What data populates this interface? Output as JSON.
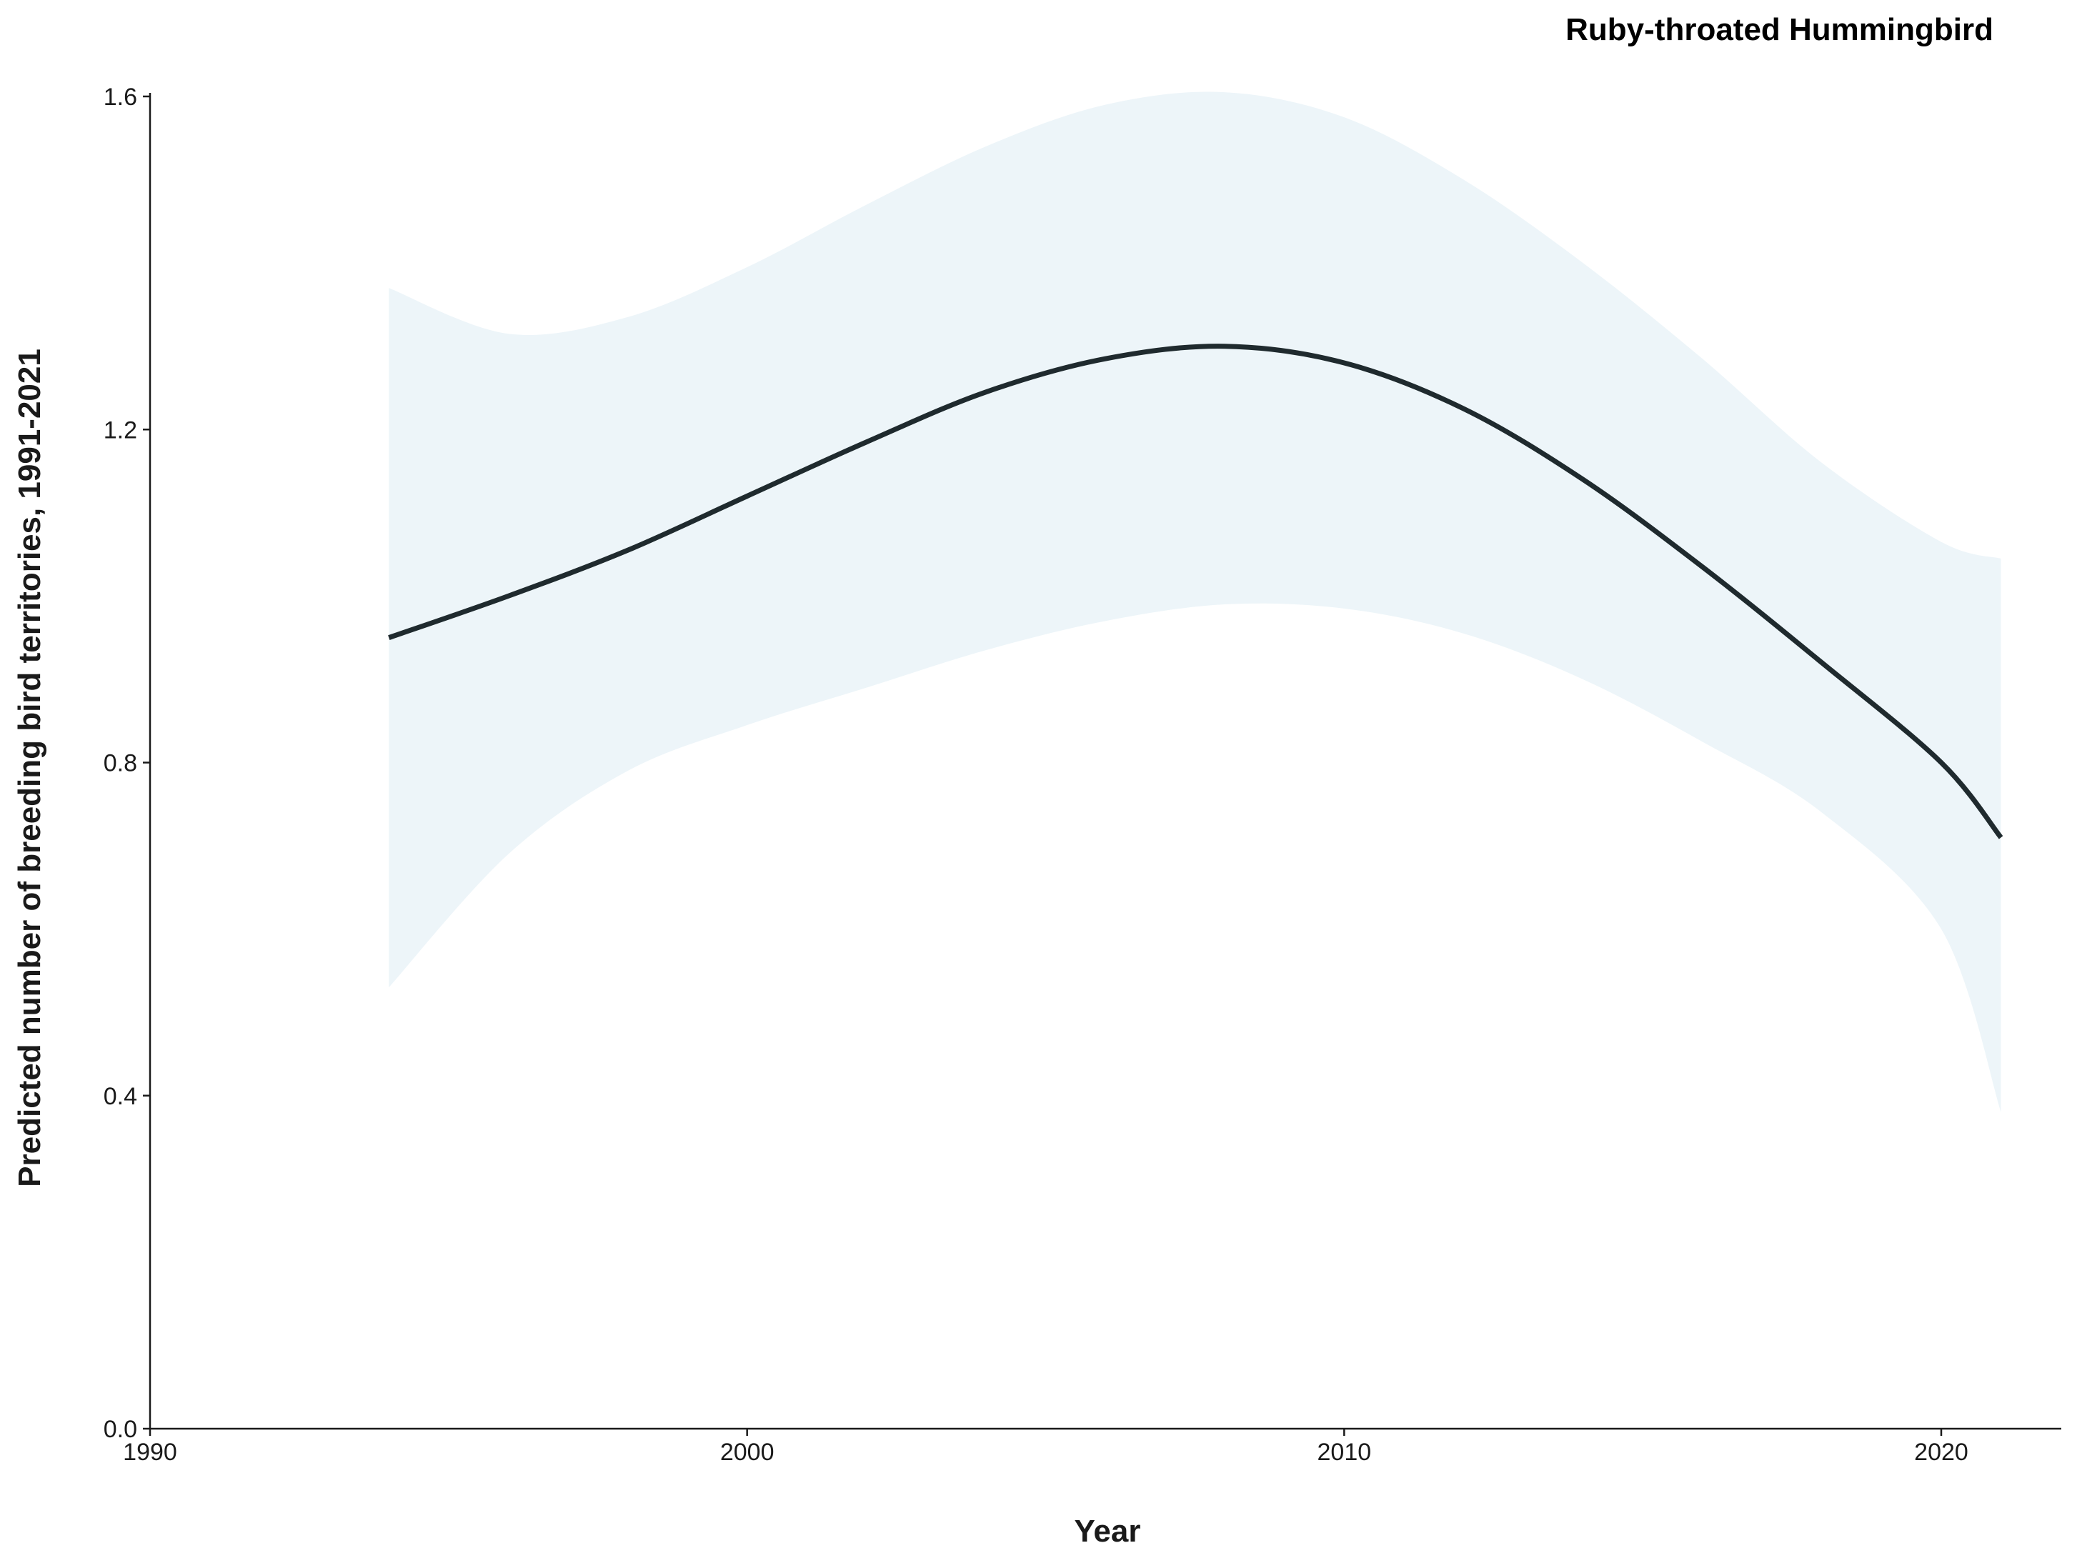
{
  "chart_data": {
    "type": "line",
    "title": "Ruby-throated Hummingbird",
    "xlabel": "Year",
    "ylabel": "Predicted number of breeding bird territories, 1991-2021",
    "xlim": [
      1990,
      2022
    ],
    "ylim": [
      0,
      1.6
    ],
    "x_ticks": [
      1990,
      2000,
      2010,
      2020
    ],
    "x_tick_labels": [
      "1990",
      "2000",
      "2010",
      "2020"
    ],
    "y_ticks": [
      0,
      0.4,
      0.8,
      1.2,
      1.6
    ],
    "y_tick_labels": [
      "0.0",
      "0.4",
      "0.8",
      "1.2",
      "1.6"
    ],
    "grid": false,
    "legend": "none",
    "colors": {
      "line": "#1f2a2e",
      "band": "#edf5f9",
      "axis": "#1a1a1a"
    },
    "series": [
      {
        "x": [
          1994,
          1996,
          1998,
          2000,
          2002,
          2004,
          2006,
          2008,
          2010,
          2012,
          2014,
          2016,
          2018,
          2020,
          2021
        ],
        "y": [
          0.95,
          1.0,
          1.055,
          1.12,
          1.185,
          1.245,
          1.285,
          1.3,
          1.28,
          1.225,
          1.14,
          1.035,
          0.92,
          0.8,
          0.71
        ],
        "lower": [
          0.53,
          0.69,
          0.79,
          0.845,
          0.89,
          0.935,
          0.97,
          0.99,
          0.985,
          0.955,
          0.9,
          0.825,
          0.74,
          0.6,
          0.38
        ],
        "upper": [
          1.37,
          1.315,
          1.335,
          1.395,
          1.47,
          1.54,
          1.59,
          1.605,
          1.575,
          1.5,
          1.4,
          1.285,
          1.16,
          1.065,
          1.045
        ]
      }
    ]
  }
}
